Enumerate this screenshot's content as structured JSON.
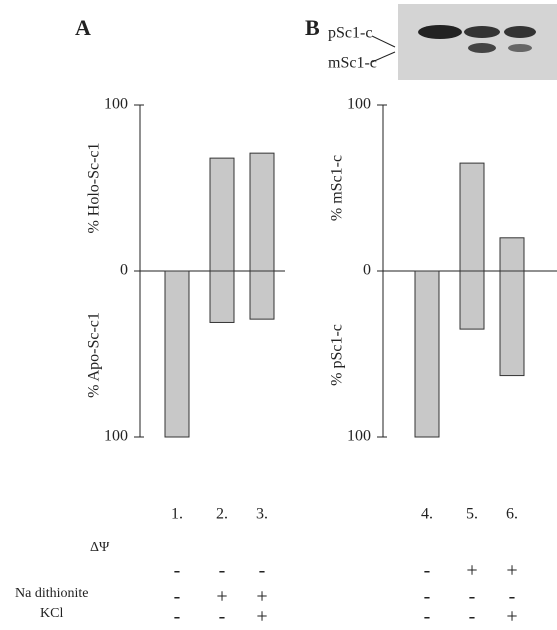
{
  "chart_data": [
    {
      "type": "bar",
      "panel": "A",
      "categories": [
        "1.",
        "2.",
        "3."
      ],
      "ylabel_positive": "% Holo-Sc-c1",
      "ylabel_negative": "% Apo-Sc-c1",
      "series": [
        {
          "color": "#c8c8c8",
          "values": [
            0,
            68,
            71
          ]
        },
        {
          "color": "#c8c8c8",
          "values": [
            -100,
            -31,
            -29
          ]
        }
      ],
      "ylim": [
        -100,
        100
      ],
      "yticks": [
        {
          "value": -100,
          "label": "100"
        },
        0,
        100
      ]
    },
    {
      "type": "bar",
      "panel": "B",
      "categories": [
        "4.",
        "5.",
        "6."
      ],
      "ylabel_positive": "% mSc1-c",
      "ylabel_negative": "% pSc1-c",
      "gel_labels": [
        "pSc1-c",
        "mSc1-c"
      ],
      "series": [
        {
          "color": "#c8c8c8",
          "values": [
            0,
            65,
            20
          ]
        },
        {
          "color": "#c8c8c8",
          "values": [
            -100,
            -35,
            -63
          ]
        }
      ],
      "ylim": [
        -100,
        100
      ],
      "yticks": [
        {
          "value": -100,
          "label": "100"
        },
        0,
        100
      ]
    }
  ],
  "conditions": {
    "labels": [
      "ΔΨ",
      "Na dithionite",
      "KCl"
    ],
    "rows": [
      [
        "-",
        "-",
        "-",
        "-",
        "+",
        "+"
      ],
      [
        "-",
        "+",
        "+",
        "-",
        "-",
        "-"
      ],
      [
        "-",
        "-",
        "+",
        "-",
        "-",
        "+"
      ]
    ]
  }
}
